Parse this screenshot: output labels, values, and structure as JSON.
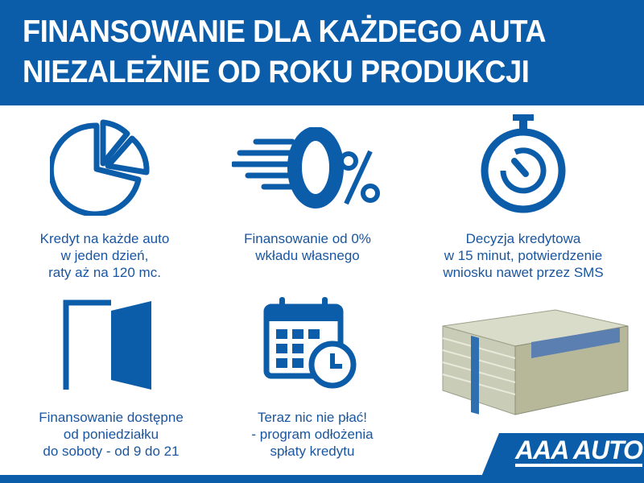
{
  "header": {
    "line1": "FINANSOWANIE DLA KAŻDEGO AUTA",
    "line2": "NIEZALEŻNIE OD ROKU PRODUKCJI"
  },
  "colors": {
    "brand_blue": "#0b5ca9",
    "text_blue": "#1a56a0"
  },
  "features": [
    {
      "icon": "pie-chart-icon",
      "lines": [
        "Kredyt na każde auto",
        "w jeden dzień,",
        "raty aż na 120 mc."
      ]
    },
    {
      "icon": "zero-percent-icon",
      "lines": [
        "Finansowanie od 0%",
        "wkładu własnego"
      ]
    },
    {
      "icon": "stopwatch-icon",
      "lines": [
        "Decyzja kredytowa",
        "w 15 minut, potwierdzenie",
        "wniosku nawet przez SMS"
      ]
    },
    {
      "icon": "open-door-icon",
      "lines": [
        "Finansowanie dostępne",
        "od poniedziałku",
        "do soboty - od 9 do 21"
      ]
    },
    {
      "icon": "calendar-clock-icon",
      "lines": [
        "Teraz nic nie płać!",
        "- program odłożenia",
        "spłaty kredytu"
      ]
    }
  ],
  "logo": {
    "text": "AAA AUTO"
  }
}
